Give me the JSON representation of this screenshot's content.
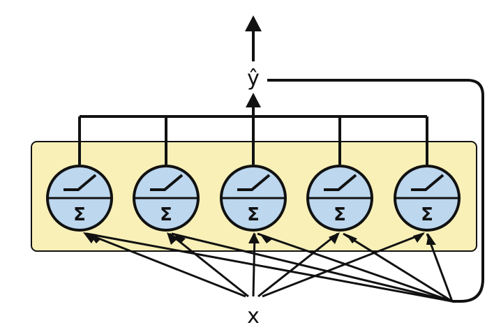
{
  "diagram": {
    "output_label": "ŷ",
    "input_label": "x",
    "neuron_count": 5,
    "neuron_symbol": "Σ",
    "activation_icon": "relu-icon",
    "layer_fill": "#F8F0B7",
    "neuron_fill": "#BCD7EE",
    "stroke_color": "#111111"
  }
}
